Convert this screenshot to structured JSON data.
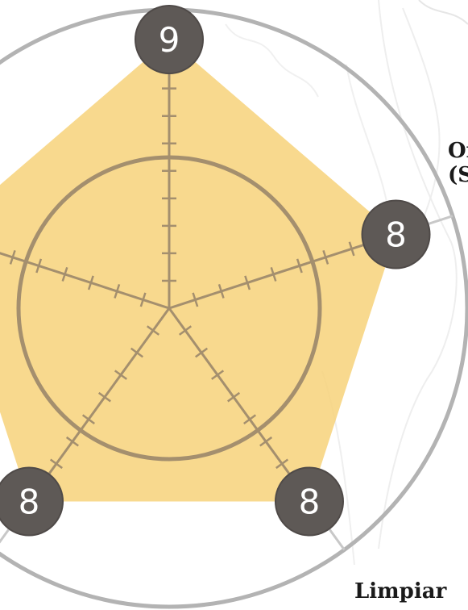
{
  "chart_data": {
    "type": "radar",
    "max": 10,
    "axis_labels": [
      "",
      "Or\n(S",
      "",
      "",
      "Limpiar"
    ],
    "values": [
      9,
      8,
      8,
      8,
      8
    ],
    "value_labels": [
      "9",
      "8",
      "8",
      "8",
      "8"
    ],
    "colors": {
      "fill": "#f7d27a",
      "axis": "#a48f6e",
      "badge": "#5e5956",
      "badge_text": "#ffffff",
      "outer_ring": "#b3b3b3",
      "inner_ring": "#a48f6e"
    },
    "grid": true
  }
}
